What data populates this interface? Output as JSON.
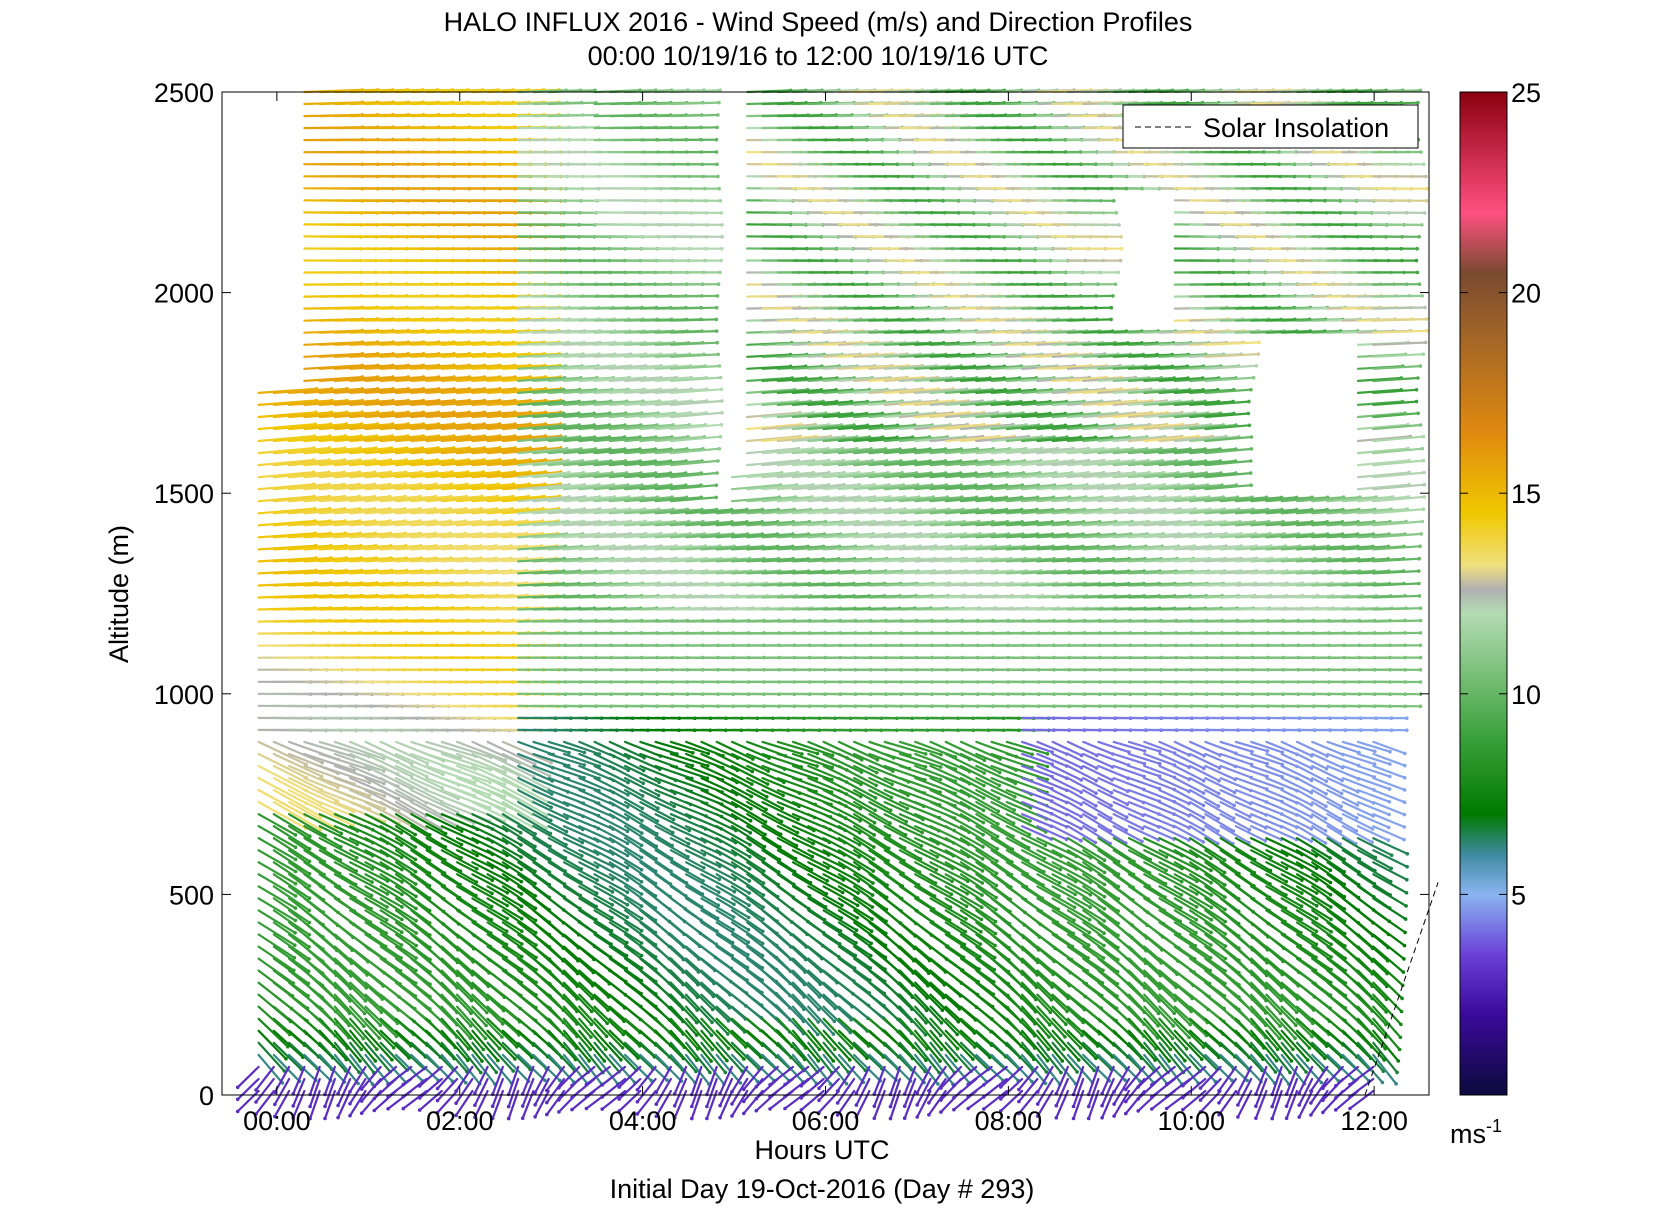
{
  "chart_data": {
    "type": "vector-field",
    "title": "HALO INFLUX 2016 - Wind Speed (m/s) and Direction Profiles",
    "subtitle": "00:00 10/19/16 to 12:00 10/19/16  UTC",
    "xlabel": "Hours UTC",
    "xlabel2": "Initial Day 19-Oct-2016 (Day # 293)",
    "ylabel": "Altitude (m)",
    "x_range_hours": [
      -0.6,
      12.6
    ],
    "ylim": [
      0,
      2500
    ],
    "x_ticks": [
      {
        "value": 0,
        "label": "00:00"
      },
      {
        "value": 2,
        "label": "02:00"
      },
      {
        "value": 4,
        "label": "04:00"
      },
      {
        "value": 6,
        "label": "06:00"
      },
      {
        "value": 8,
        "label": "08:00"
      },
      {
        "value": 10,
        "label": "10:00"
      },
      {
        "value": 12,
        "label": "12:00"
      }
    ],
    "y_ticks": [
      0,
      500,
      1000,
      1500,
      2000,
      2500
    ],
    "legend": {
      "placement": "top-right",
      "entries": [
        {
          "label": "Solar Insolation",
          "style": "dashed",
          "color": "#000000"
        }
      ]
    },
    "colorbar": {
      "min": 0,
      "max": 25,
      "ticks": [
        5,
        10,
        15,
        20,
        25
      ],
      "unit_label": "ms",
      "unit_exp": "-1",
      "colormap": [
        {
          "v": 0,
          "c": "#0a0a3c"
        },
        {
          "v": 2,
          "c": "#3a0a9a"
        },
        {
          "v": 3.5,
          "c": "#6a40d8"
        },
        {
          "v": 5,
          "c": "#8ab4f0"
        },
        {
          "v": 6,
          "c": "#3e8aa0"
        },
        {
          "v": 7,
          "c": "#007a00"
        },
        {
          "v": 9,
          "c": "#3ea33e"
        },
        {
          "v": 12,
          "c": "#b4dcb4"
        },
        {
          "v": 12.6,
          "c": "#b0b0b0"
        },
        {
          "v": 13.2,
          "c": "#f0e080"
        },
        {
          "v": 14.5,
          "c": "#f0c800"
        },
        {
          "v": 16.5,
          "c": "#e08a10"
        },
        {
          "v": 19,
          "c": "#a06428"
        },
        {
          "v": 20.5,
          "c": "#7a4a30"
        },
        {
          "v": 22,
          "c": "#ff5080"
        },
        {
          "v": 25,
          "c": "#8c0010"
        }
      ]
    },
    "solar_insolation": [
      {
        "hour": 11.9,
        "alt": 0
      },
      {
        "hour": 12.7,
        "alt": 530
      }
    ],
    "series_summary": {
      "time_step_hours": 0.167,
      "altitude_step_m": 30,
      "profiles_start_hour": -0.2,
      "profiles_end_hour": 12.1
    }
  }
}
